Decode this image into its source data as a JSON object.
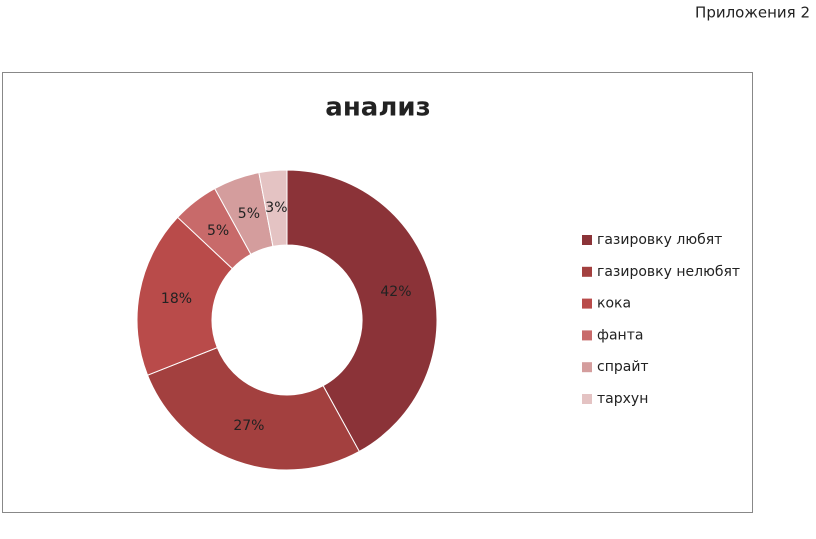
{
  "header": {
    "title": "Приложения 2"
  },
  "chart_data": {
    "type": "doughnut",
    "title": "анализ",
    "categories": [
      "газировку любят",
      "газировку нелюбят",
      "кока",
      "фанта",
      "спрайт",
      "тархун"
    ],
    "values": [
      42,
      27,
      18,
      5,
      5,
      3
    ],
    "value_labels": [
      "42%",
      "27%",
      "18%",
      "5%",
      "5%",
      "3%"
    ],
    "colors": [
      "#8b3338",
      "#a3403f",
      "#b94b4a",
      "#c86a6a",
      "#d49d9d",
      "#e4c3c3"
    ],
    "legend": "right"
  }
}
